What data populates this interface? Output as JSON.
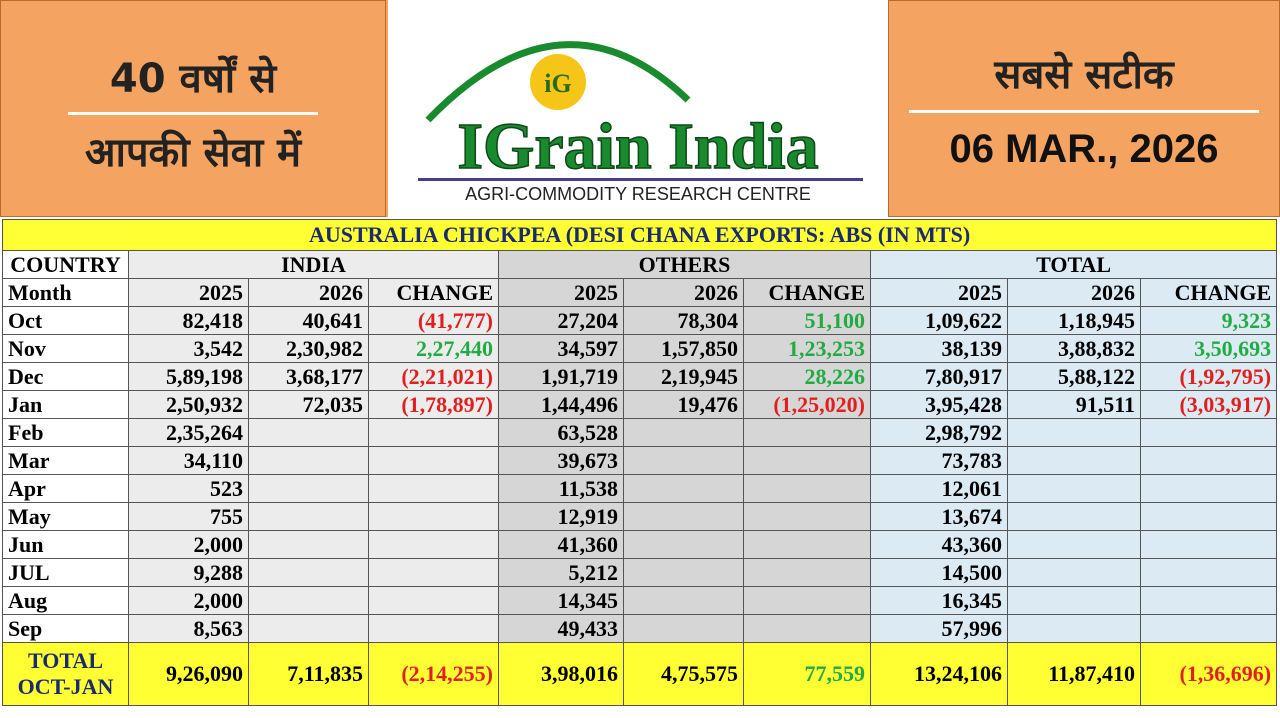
{
  "header": {
    "left_lines": [
      "40 वर्षों से",
      "आपकी सेवा में"
    ],
    "logo_badge": "iG",
    "logo_title": "IGrain India",
    "logo_subtitle": "AGRI-COMMODITY RESEARCH CENTRE",
    "right_tagline": "सबसे सटीक",
    "date": "06 MAR., 2026"
  },
  "table": {
    "title": "AUSTRALIA CHICKPEA (DESI CHANA EXPORTS: ABS (IN MTS)",
    "groups": [
      "COUNTRY",
      "INDIA",
      "OTHERS",
      "TOTAL"
    ],
    "columns": [
      "Month",
      "2025",
      "2026",
      "CHANGE",
      "2025",
      "2026",
      "CHANGE",
      "2025",
      "2026",
      "CHANGE"
    ],
    "rows": [
      [
        "Oct",
        "82,418",
        "40,641",
        "(41,777)",
        "27,204",
        "78,304",
        "51,100",
        "1,09,622",
        "1,18,945",
        "9,323"
      ],
      [
        "Nov",
        "3,542",
        "2,30,982",
        "2,27,440",
        "34,597",
        "1,57,850",
        "1,23,253",
        "38,139",
        "3,88,832",
        "3,50,693"
      ],
      [
        "Dec",
        "5,89,198",
        "3,68,177",
        "(2,21,021)",
        "1,91,719",
        "2,19,945",
        "28,226",
        "7,80,917",
        "5,88,122",
        "(1,92,795)"
      ],
      [
        "Jan",
        "2,50,932",
        "72,035",
        "(1,78,897)",
        "1,44,496",
        "19,476",
        "(1,25,020)",
        "3,95,428",
        "91,511",
        "(3,03,917)"
      ],
      [
        "Feb",
        "2,35,264",
        null,
        null,
        "63,528",
        null,
        null,
        "2,98,792",
        null,
        null
      ],
      [
        "Mar",
        "34,110",
        null,
        null,
        "39,673",
        null,
        null,
        "73,783",
        null,
        null
      ],
      [
        "Apr",
        "523",
        null,
        null,
        "11,538",
        null,
        null,
        "12,061",
        null,
        null
      ],
      [
        "May",
        "755",
        null,
        null,
        "12,919",
        null,
        null,
        "13,674",
        null,
        null
      ],
      [
        "Jun",
        "2,000",
        null,
        null,
        "41,360",
        null,
        null,
        "43,360",
        null,
        null
      ],
      [
        "JUL",
        "9,288",
        null,
        null,
        "5,212",
        null,
        null,
        "14,500",
        null,
        null
      ],
      [
        "Aug",
        "2,000",
        null,
        null,
        "14,345",
        null,
        null,
        "16,345",
        null,
        null
      ],
      [
        "Sep",
        "8,563",
        null,
        null,
        "49,433",
        null,
        null,
        "57,996",
        null,
        null
      ]
    ],
    "total_row": [
      "TOTAL OCT-JAN",
      "9,26,090",
      "7,11,835",
      "(2,14,255)",
      "3,98,016",
      "4,75,575",
      "77,559",
      "13,24,106",
      "11,87,410",
      "(1,36,696)"
    ]
  }
}
